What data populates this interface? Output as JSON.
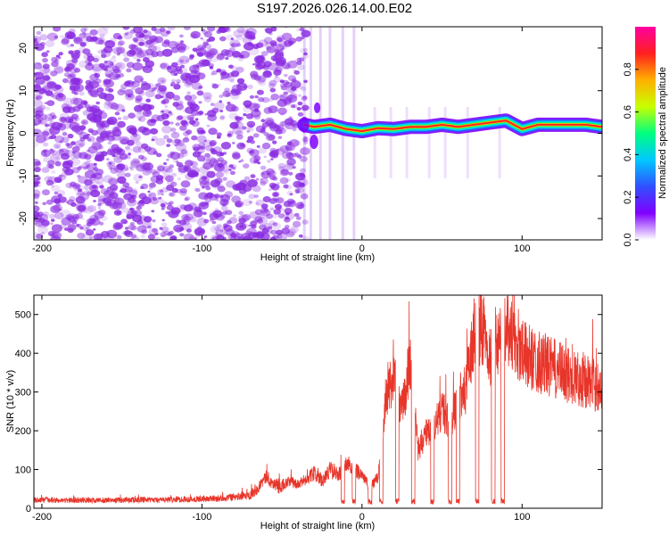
{
  "title": "S197.2026.026.14.00.E02",
  "colors": {
    "snr_line": "#e8352a",
    "speckle": "#8a2be2",
    "ridge_core": "#ff2020"
  },
  "colormap": [
    "#ffffff",
    "#8000ff",
    "#3050ff",
    "#00c8ff",
    "#00ff80",
    "#c8ff00",
    "#ffb000",
    "#ff2020",
    "#ff00a0"
  ],
  "chart_data": [
    {
      "type": "heatmap",
      "title": "",
      "xlabel": "Height of straight line (km)",
      "ylabel": "Frequency (Hz)",
      "xlim": [
        -205,
        150
      ],
      "ylim": [
        -25,
        25
      ],
      "xticks": [
        -200,
        -100,
        0,
        100
      ],
      "yticks": [
        -20,
        -10,
        0,
        10,
        20
      ],
      "colorbar": {
        "label": "Normalized spectral amplitude",
        "range": [
          0,
          1
        ],
        "ticks": [
          0.0,
          0.2,
          0.4,
          0.6,
          0.8
        ]
      },
      "ridge": {
        "x": [
          -36,
          -30,
          -20,
          -10,
          0,
          10,
          20,
          30,
          40,
          50,
          60,
          70,
          80,
          90,
          100,
          110,
          120,
          130,
          140,
          150
        ],
        "y": [
          2.0,
          1.5,
          2.0,
          1.0,
          0.5,
          1.2,
          1.0,
          1.5,
          1.5,
          2.0,
          1.5,
          2.0,
          2.5,
          3.0,
          1.0,
          2.0,
          2.0,
          2.0,
          2.0,
          1.5
        ]
      }
    },
    {
      "type": "line",
      "title": "",
      "xlabel": "Height of straight line (km)",
      "ylabel": "SNR (10 * v/v)",
      "xlim": [
        -205,
        150
      ],
      "ylim": [
        0,
        550
      ],
      "xticks": [
        -200,
        -100,
        0,
        100
      ],
      "yticks": [
        0,
        100,
        200,
        300,
        400,
        500
      ],
      "series": [
        {
          "x": [
            -205,
            -190,
            -175,
            -160,
            -145,
            -130,
            -115,
            -100,
            -90,
            -80,
            -70,
            -65,
            -60,
            -55,
            -50,
            -45,
            -40,
            -35,
            -30,
            -25,
            -20,
            -15,
            -10,
            -5,
            0,
            5,
            10,
            15,
            20,
            25,
            30,
            35,
            40,
            45,
            50,
            55,
            60,
            65,
            70,
            75,
            80,
            85,
            90,
            95,
            100,
            110,
            120,
            130,
            140,
            150
          ],
          "values": [
            22,
            20,
            21,
            20,
            22,
            21,
            23,
            24,
            25,
            28,
            35,
            55,
            80,
            60,
            55,
            70,
            60,
            75,
            90,
            70,
            100,
            85,
            110,
            100,
            90,
            50,
            80,
            300,
            340,
            250,
            380,
            150,
            190,
            200,
            260,
            210,
            280,
            310,
            450,
            470,
            400,
            440,
            480,
            430,
            400,
            380,
            360,
            340,
            330,
            310
          ]
        }
      ]
    }
  ]
}
